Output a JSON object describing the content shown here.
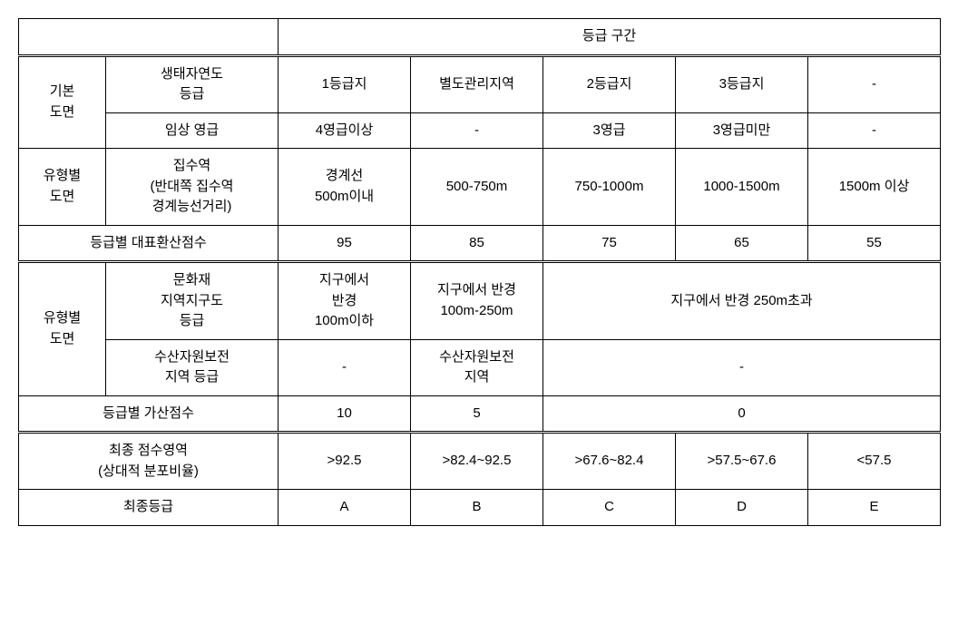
{
  "colors": {
    "background": "#ffffff",
    "text": "#000000",
    "border": "#000000"
  },
  "typography": {
    "font_family": "Malgun Gothic",
    "font_size_pt": 11,
    "line_height": 1.5
  },
  "table": {
    "type": "table",
    "header": {
      "grade_range": "등급 구간"
    },
    "rows": {
      "basic_drawing": {
        "label": "기본\n도면",
        "eco_grade": {
          "label": "생태자연도\n등급",
          "cells": [
            "1등급지",
            "별도관리지역",
            "2등급지",
            "3등급지",
            "-"
          ]
        },
        "forest_age": {
          "label": "임상 영급",
          "cells": [
            "4영급이상",
            "-",
            "3영급",
            "3영급미만",
            "-"
          ]
        }
      },
      "type_drawing_1": {
        "label": "유형별\n도면",
        "catchment": {
          "label": "집수역\n(반대쪽 집수역\n경계능선거리)",
          "cells": [
            "경계선\n500m이내",
            "500-750m",
            "750-1000m",
            "1000-1500m",
            "1500m 이상"
          ]
        }
      },
      "rep_score": {
        "label": "등급별 대표환산점수",
        "cells": [
          "95",
          "85",
          "75",
          "65",
          "55"
        ]
      },
      "type_drawing_2": {
        "label": "유형별\n도면",
        "cultural": {
          "label": "문화재\n지역지구도\n등급",
          "c1": "지구에서\n반경\n100m이하",
          "c2": "지구에서 반경\n100m-250m",
          "c_merged": "지구에서 반경 250m초과"
        },
        "fishery": {
          "label": "수산자원보전\n지역 등급",
          "c1": "-",
          "c2": "수산자원보전\n지역",
          "c_merged": "-"
        }
      },
      "add_score": {
        "label": "등급별 가산점수",
        "c1": "10",
        "c2": "5",
        "c_merged": "0"
      },
      "final_score": {
        "label": "최종 점수영역\n(상대적 분포비율)",
        "cells": [
          ">92.5",
          ">82.4~92.5",
          ">67.6~82.4",
          ">57.5~67.6",
          "<57.5"
        ]
      },
      "final_grade": {
        "label": "최종등급",
        "cells": [
          "A",
          "B",
          "C",
          "D",
          "E"
        ]
      }
    }
  }
}
